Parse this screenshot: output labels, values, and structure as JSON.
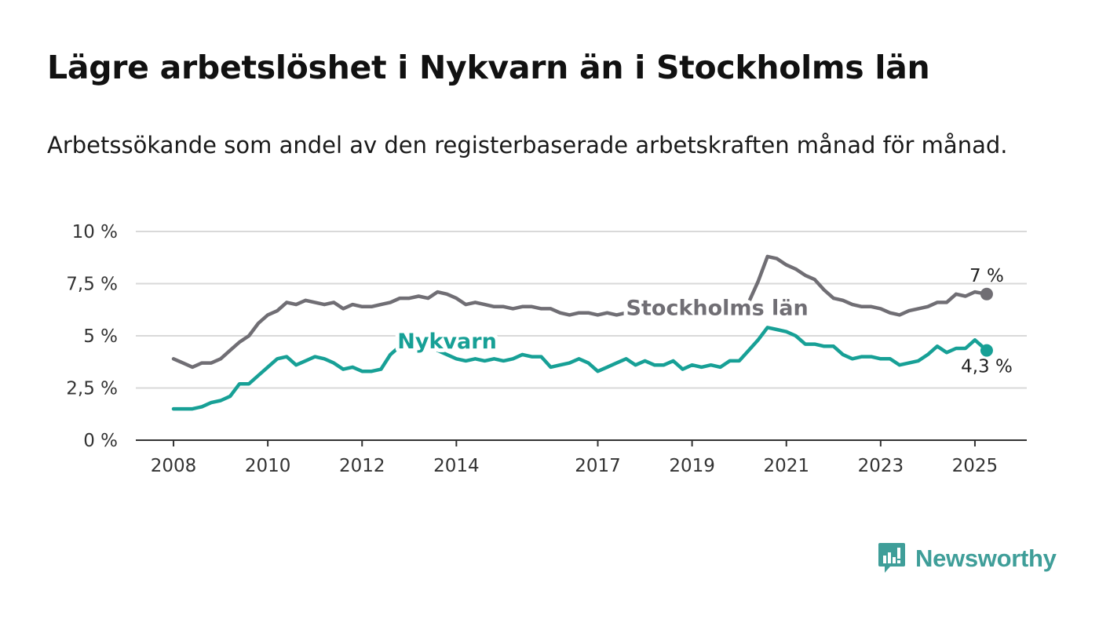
{
  "title": "Lägre arbetslöshet i Nykvarn än i Stockholms län",
  "subtitle": "Arbetssökande som andel av den registerbaserade arbetskraften månad för månad.",
  "brand": {
    "name": "Newsworthy",
    "icon": "newsworthy-logo-icon",
    "color": "#3f9e99"
  },
  "chart_data": {
    "type": "line",
    "title": "Lägre arbetslöshet i Nykvarn än i Stockholms län",
    "subtitle": "Arbetssökande som andel av den registerbaserade arbetskraften månad för månad.",
    "xlabel": "",
    "ylabel": "",
    "x_ticks": [
      "2008",
      "2010",
      "2012",
      "2014",
      "2017",
      "2019",
      "2021",
      "2023",
      "2025"
    ],
    "y_ticks": [
      {
        "value": 0,
        "label": "0 %"
      },
      {
        "value": 2.5,
        "label": "2,5 %"
      },
      {
        "value": 5,
        "label": "5 %"
      },
      {
        "value": 7.5,
        "label": "7,5 %"
      },
      {
        "value": 10,
        "label": "10 %"
      }
    ],
    "ylim": [
      0,
      10
    ],
    "xlim": [
      2007.2,
      2026.1
    ],
    "grid": true,
    "series": [
      {
        "name": "Stockholms län",
        "color": "#706e74",
        "end_label": "7 %",
        "points": [
          [
            2008.0,
            3.9
          ],
          [
            2008.2,
            3.7
          ],
          [
            2008.4,
            3.5
          ],
          [
            2008.6,
            3.7
          ],
          [
            2008.8,
            3.7
          ],
          [
            2009.0,
            3.9
          ],
          [
            2009.2,
            4.3
          ],
          [
            2009.4,
            4.7
          ],
          [
            2009.6,
            5.0
          ],
          [
            2009.8,
            5.6
          ],
          [
            2010.0,
            6.0
          ],
          [
            2010.2,
            6.2
          ],
          [
            2010.4,
            6.6
          ],
          [
            2010.6,
            6.5
          ],
          [
            2010.8,
            6.7
          ],
          [
            2011.0,
            6.6
          ],
          [
            2011.2,
            6.5
          ],
          [
            2011.4,
            6.6
          ],
          [
            2011.6,
            6.3
          ],
          [
            2011.8,
            6.5
          ],
          [
            2012.0,
            6.4
          ],
          [
            2012.2,
            6.4
          ],
          [
            2012.4,
            6.5
          ],
          [
            2012.6,
            6.6
          ],
          [
            2012.8,
            6.8
          ],
          [
            2013.0,
            6.8
          ],
          [
            2013.2,
            6.9
          ],
          [
            2013.4,
            6.8
          ],
          [
            2013.6,
            7.1
          ],
          [
            2013.8,
            7.0
          ],
          [
            2014.0,
            6.8
          ],
          [
            2014.2,
            6.5
          ],
          [
            2014.4,
            6.6
          ],
          [
            2014.6,
            6.5
          ],
          [
            2014.8,
            6.4
          ],
          [
            2015.0,
            6.4
          ],
          [
            2015.2,
            6.3
          ],
          [
            2015.4,
            6.4
          ],
          [
            2015.6,
            6.4
          ],
          [
            2015.8,
            6.3
          ],
          [
            2016.0,
            6.3
          ],
          [
            2016.2,
            6.1
          ],
          [
            2016.4,
            6.0
          ],
          [
            2016.6,
            6.1
          ],
          [
            2016.8,
            6.1
          ],
          [
            2017.0,
            6.0
          ],
          [
            2017.2,
            6.1
          ],
          [
            2017.4,
            6.0
          ],
          [
            2017.6,
            6.1
          ],
          [
            2017.8,
            6.0
          ],
          [
            2018.0,
            6.0
          ],
          [
            2018.2,
            6.1
          ],
          [
            2018.4,
            6.0
          ],
          [
            2018.6,
            6.0
          ],
          [
            2018.8,
            6.1
          ],
          [
            2019.0,
            6.0
          ],
          [
            2019.2,
            6.0
          ],
          [
            2019.4,
            6.1
          ],
          [
            2019.6,
            6.0
          ],
          [
            2019.8,
            6.2
          ],
          [
            2020.0,
            6.2
          ],
          [
            2020.2,
            6.6
          ],
          [
            2020.4,
            7.6
          ],
          [
            2020.6,
            8.8
          ],
          [
            2020.8,
            8.7
          ],
          [
            2021.0,
            8.4
          ],
          [
            2021.2,
            8.2
          ],
          [
            2021.4,
            7.9
          ],
          [
            2021.6,
            7.7
          ],
          [
            2021.8,
            7.2
          ],
          [
            2022.0,
            6.8
          ],
          [
            2022.2,
            6.7
          ],
          [
            2022.4,
            6.5
          ],
          [
            2022.6,
            6.4
          ],
          [
            2022.8,
            6.4
          ],
          [
            2023.0,
            6.3
          ],
          [
            2023.2,
            6.1
          ],
          [
            2023.4,
            6.0
          ],
          [
            2023.6,
            6.2
          ],
          [
            2023.8,
            6.3
          ],
          [
            2024.0,
            6.4
          ],
          [
            2024.2,
            6.6
          ],
          [
            2024.4,
            6.6
          ],
          [
            2024.6,
            7.0
          ],
          [
            2024.8,
            6.9
          ],
          [
            2025.0,
            7.1
          ],
          [
            2025.25,
            7.0
          ]
        ]
      },
      {
        "name": "Nykvarn",
        "color": "#17a096",
        "end_label": "4,3 %",
        "points": [
          [
            2008.0,
            1.5
          ],
          [
            2008.2,
            1.5
          ],
          [
            2008.4,
            1.5
          ],
          [
            2008.6,
            1.6
          ],
          [
            2008.8,
            1.8
          ],
          [
            2009.0,
            1.9
          ],
          [
            2009.2,
            2.1
          ],
          [
            2009.4,
            2.7
          ],
          [
            2009.6,
            2.7
          ],
          [
            2009.8,
            3.1
          ],
          [
            2010.0,
            3.5
          ],
          [
            2010.2,
            3.9
          ],
          [
            2010.4,
            4.0
          ],
          [
            2010.6,
            3.6
          ],
          [
            2010.8,
            3.8
          ],
          [
            2011.0,
            4.0
          ],
          [
            2011.2,
            3.9
          ],
          [
            2011.4,
            3.7
          ],
          [
            2011.6,
            3.4
          ],
          [
            2011.8,
            3.5
          ],
          [
            2012.0,
            3.3
          ],
          [
            2012.2,
            3.3
          ],
          [
            2012.4,
            3.4
          ],
          [
            2012.6,
            4.1
          ],
          [
            2012.8,
            4.5
          ],
          [
            2013.0,
            4.9
          ],
          [
            2013.2,
            5.0
          ],
          [
            2013.4,
            4.6
          ],
          [
            2013.6,
            4.3
          ],
          [
            2013.8,
            4.1
          ],
          [
            2014.0,
            3.9
          ],
          [
            2014.2,
            3.8
          ],
          [
            2014.4,
            3.9
          ],
          [
            2014.6,
            3.8
          ],
          [
            2014.8,
            3.9
          ],
          [
            2015.0,
            3.8
          ],
          [
            2015.2,
            3.9
          ],
          [
            2015.4,
            4.1
          ],
          [
            2015.6,
            4.0
          ],
          [
            2015.8,
            4.0
          ],
          [
            2016.0,
            3.5
          ],
          [
            2016.2,
            3.6
          ],
          [
            2016.4,
            3.7
          ],
          [
            2016.6,
            3.9
          ],
          [
            2016.8,
            3.7
          ],
          [
            2017.0,
            3.3
          ],
          [
            2017.2,
            3.5
          ],
          [
            2017.4,
            3.7
          ],
          [
            2017.6,
            3.9
          ],
          [
            2017.8,
            3.6
          ],
          [
            2018.0,
            3.8
          ],
          [
            2018.2,
            3.6
          ],
          [
            2018.4,
            3.6
          ],
          [
            2018.6,
            3.8
          ],
          [
            2018.8,
            3.4
          ],
          [
            2019.0,
            3.6
          ],
          [
            2019.2,
            3.5
          ],
          [
            2019.4,
            3.6
          ],
          [
            2019.6,
            3.5
          ],
          [
            2019.8,
            3.8
          ],
          [
            2020.0,
            3.8
          ],
          [
            2020.2,
            4.3
          ],
          [
            2020.4,
            4.8
          ],
          [
            2020.6,
            5.4
          ],
          [
            2020.8,
            5.3
          ],
          [
            2021.0,
            5.2
          ],
          [
            2021.2,
            5.0
          ],
          [
            2021.4,
            4.6
          ],
          [
            2021.6,
            4.6
          ],
          [
            2021.8,
            4.5
          ],
          [
            2022.0,
            4.5
          ],
          [
            2022.2,
            4.1
          ],
          [
            2022.4,
            3.9
          ],
          [
            2022.6,
            4.0
          ],
          [
            2022.8,
            4.0
          ],
          [
            2023.0,
            3.9
          ],
          [
            2023.2,
            3.9
          ],
          [
            2023.4,
            3.6
          ],
          [
            2023.6,
            3.7
          ],
          [
            2023.8,
            3.8
          ],
          [
            2024.0,
            4.1
          ],
          [
            2024.2,
            4.5
          ],
          [
            2024.4,
            4.2
          ],
          [
            2024.6,
            4.4
          ],
          [
            2024.8,
            4.4
          ],
          [
            2025.0,
            4.8
          ],
          [
            2025.25,
            4.3
          ]
        ]
      }
    ],
    "series_labels": [
      {
        "series": "Stockholms län",
        "x": 2017.6,
        "y": 6.0
      },
      {
        "series": "Nykvarn",
        "x": 2012.75,
        "y": 4.4
      }
    ]
  }
}
